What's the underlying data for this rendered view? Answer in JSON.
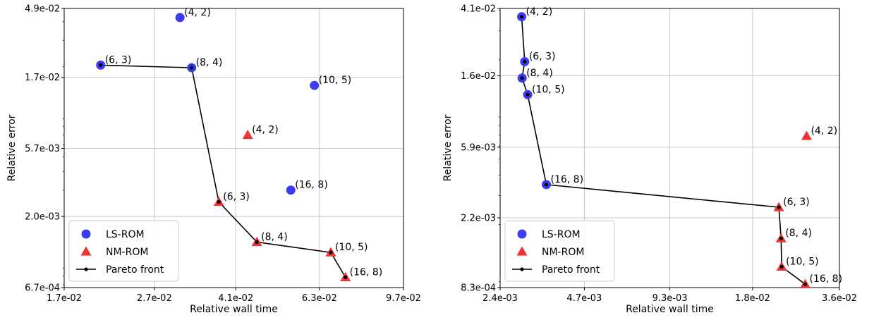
{
  "colors": {
    "ls": "#3b3bf0",
    "nm": "#ee3333",
    "pareto": "#000000",
    "grid": "#c8c8c8"
  },
  "chart_data": [
    {
      "type": "scatter",
      "xscale": "log",
      "yscale": "log",
      "xlabel": "Relative wall time",
      "ylabel": "Relative error",
      "xlim": [
        0.017,
        0.097
      ],
      "ylim": [
        0.00067,
        0.049
      ],
      "xticks": [
        0.017,
        0.027,
        0.041,
        0.063,
        0.097
      ],
      "xtick_labels": [
        "1.7e-02",
        "2.7e-02",
        "4.1e-02",
        "6.3e-02",
        "9.7e-02"
      ],
      "yticks": [
        0.00067,
        0.002,
        0.0057,
        0.017,
        0.049
      ],
      "ytick_labels": [
        "6.7e-04",
        "2.0e-03",
        "5.7e-03",
        "1.7e-02",
        "4.9e-02"
      ],
      "grid": true,
      "legend": {
        "placement": "lower-left",
        "entries": [
          "LS-ROM",
          "NM-ROM",
          "Pareto front"
        ]
      },
      "series": [
        {
          "name": "LS-ROM",
          "marker": "circle",
          "points": [
            {
              "x": 0.0308,
              "y": 0.0426,
              "label": "(4, 2)"
            },
            {
              "x": 0.0205,
              "y": 0.0205,
              "label": "(6, 3)"
            },
            {
              "x": 0.0327,
              "y": 0.0197,
              "label": "(8, 4)"
            },
            {
              "x": 0.0614,
              "y": 0.015,
              "label": "(10, 5)"
            },
            {
              "x": 0.0544,
              "y": 0.003,
              "label": "(16, 8)"
            }
          ]
        },
        {
          "name": "NM-ROM",
          "marker": "triangle",
          "points": [
            {
              "x": 0.0436,
              "y": 0.007,
              "label": "(4, 2)"
            },
            {
              "x": 0.0376,
              "y": 0.0025,
              "label": "(6, 3)"
            },
            {
              "x": 0.0457,
              "y": 0.00135,
              "label": "(8, 4)"
            },
            {
              "x": 0.0668,
              "y": 0.00115,
              "label": "(10, 5)"
            },
            {
              "x": 0.072,
              "y": 0.000785,
              "label": "(16, 8)"
            }
          ]
        },
        {
          "name": "Pareto front",
          "marker": "line",
          "points": [
            {
              "x": 0.0205,
              "y": 0.0205
            },
            {
              "x": 0.0327,
              "y": 0.0197
            },
            {
              "x": 0.0376,
              "y": 0.0025
            },
            {
              "x": 0.0457,
              "y": 0.00135
            },
            {
              "x": 0.0668,
              "y": 0.00115
            },
            {
              "x": 0.072,
              "y": 0.000785
            }
          ]
        }
      ]
    },
    {
      "type": "scatter",
      "xscale": "log",
      "yscale": "log",
      "xlabel": "Relative wall time",
      "ylabel": "Relative error",
      "xlim": [
        0.0024,
        0.036
      ],
      "ylim": [
        0.00083,
        0.041
      ],
      "xticks": [
        0.0024,
        0.0047,
        0.0093,
        0.018,
        0.036
      ],
      "xtick_labels": [
        "2.4e-03",
        "4.7e-03",
        "9.3e-03",
        "1.8e-02",
        "3.6e-02"
      ],
      "yticks": [
        0.00083,
        0.0022,
        0.0059,
        0.016,
        0.041
      ],
      "ytick_labels": [
        "8.3e-04",
        "2.2e-03",
        "5.9e-03",
        "1.6e-02",
        "4.1e-02"
      ],
      "grid": true,
      "legend": {
        "placement": "lower-left",
        "entries": [
          "LS-ROM",
          "NM-ROM",
          "Pareto front"
        ]
      },
      "series": [
        {
          "name": "LS-ROM",
          "marker": "circle",
          "points": [
            {
              "x": 0.00285,
              "y": 0.0365,
              "label": "(4, 2)"
            },
            {
              "x": 0.00292,
              "y": 0.0195,
              "label": "(6, 3)"
            },
            {
              "x": 0.00286,
              "y": 0.0155,
              "label": "(8, 4)"
            },
            {
              "x": 0.00299,
              "y": 0.0123,
              "label": "(10, 5)"
            },
            {
              "x": 0.00347,
              "y": 0.0035,
              "label": "(16, 8)"
            }
          ]
        },
        {
          "name": "NM-ROM",
          "marker": "triangle",
          "points": [
            {
              "x": 0.0277,
              "y": 0.0069,
              "label": "(4, 2)"
            },
            {
              "x": 0.0222,
              "y": 0.00255,
              "label": "(6, 3)"
            },
            {
              "x": 0.0226,
              "y": 0.00165,
              "label": "(8, 4)"
            },
            {
              "x": 0.0227,
              "y": 0.00111,
              "label": "(10, 5)"
            },
            {
              "x": 0.0274,
              "y": 0.00087,
              "label": "(16, 8)"
            }
          ]
        },
        {
          "name": "Pareto front",
          "marker": "line",
          "points": [
            {
              "x": 0.00285,
              "y": 0.0365
            },
            {
              "x": 0.00292,
              "y": 0.0195
            },
            {
              "x": 0.00286,
              "y": 0.0155
            },
            {
              "x": 0.00299,
              "y": 0.0123
            },
            {
              "x": 0.00347,
              "y": 0.0035
            },
            {
              "x": 0.0222,
              "y": 0.00255
            },
            {
              "x": 0.0226,
              "y": 0.00165
            },
            {
              "x": 0.0227,
              "y": 0.00111
            },
            {
              "x": 0.0274,
              "y": 0.00087
            }
          ]
        }
      ]
    }
  ]
}
